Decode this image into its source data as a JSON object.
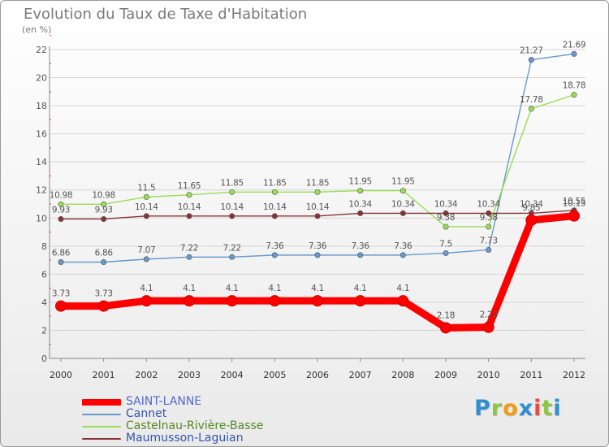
{
  "chart_data": {
    "type": "line",
    "title": "Evolution du Taux de Taxe d'Habitation",
    "unit_label": "(en %)",
    "x": [
      "2000",
      "2001",
      "2002",
      "2003",
      "2004",
      "2005",
      "2006",
      "2007",
      "2008",
      "2009",
      "2010",
      "2011",
      "2012"
    ],
    "ylim": [
      0,
      22
    ],
    "yticks": [
      0,
      2,
      4,
      6,
      8,
      10,
      12,
      14,
      16,
      18,
      20,
      22
    ],
    "grid": true,
    "legend_position": "bottom-left",
    "series": [
      {
        "name": "SAINT-LANNE",
        "color": "#ff0000",
        "weight": "thick",
        "values": [
          3.73,
          3.73,
          4.1,
          4.1,
          4.1,
          4.1,
          4.1,
          4.1,
          4.1,
          2.18,
          2.22,
          9.85,
          10.15
        ],
        "labels": [
          "3.73",
          "3.73",
          "4.1",
          "4.1",
          "4.1",
          "4.1",
          "4.1",
          "4.1",
          "4.1",
          "2.18",
          "2.22",
          "9.85",
          "10.15"
        ]
      },
      {
        "name": "Cannet",
        "color": "#6699cc",
        "weight": "thin",
        "values": [
          6.86,
          6.86,
          7.07,
          7.22,
          7.22,
          7.36,
          7.36,
          7.36,
          7.36,
          7.5,
          7.73,
          21.27,
          21.69
        ],
        "labels": [
          "6.86",
          "6.86",
          "7.07",
          "7.22",
          "7.22",
          "7.36",
          "7.36",
          "7.36",
          "7.36",
          "7.5",
          "7.73",
          "21.27",
          "21.69"
        ]
      },
      {
        "name": "Castelnau-Rivière-Basse",
        "color": "#99dd55",
        "weight": "thin",
        "values": [
          10.98,
          10.98,
          11.5,
          11.65,
          11.85,
          11.85,
          11.85,
          11.95,
          11.95,
          9.38,
          9.38,
          17.78,
          18.78
        ],
        "labels": [
          "10.98",
          "10.98",
          "11.5",
          "11.65",
          "11.85",
          "11.85",
          "11.85",
          "11.95",
          "11.95",
          "9.38",
          "9.38",
          "17.78",
          "18.78"
        ]
      },
      {
        "name": "Maumusson-Laguian",
        "color": "#883333",
        "weight": "thin",
        "values": [
          9.93,
          9.93,
          10.14,
          10.14,
          10.14,
          10.14,
          10.14,
          10.34,
          10.34,
          10.34,
          10.34,
          10.34,
          10.55
        ],
        "labels": [
          "9.93",
          "9.93",
          "10.14",
          "10.14",
          "10.14",
          "10.14",
          "10.14",
          "10.34",
          "10.34",
          "10.34",
          "10.34",
          "10.34",
          "10.55"
        ]
      }
    ]
  },
  "brand": {
    "letters": [
      "P",
      "r",
      "o",
      "x",
      "i",
      "t",
      "i"
    ],
    "colors": [
      "#2f8fd0",
      "#8ac640",
      "#f39c12",
      "#2f8fd0",
      "#e74c3c",
      "#8ac640",
      "#2f8fd0"
    ]
  }
}
